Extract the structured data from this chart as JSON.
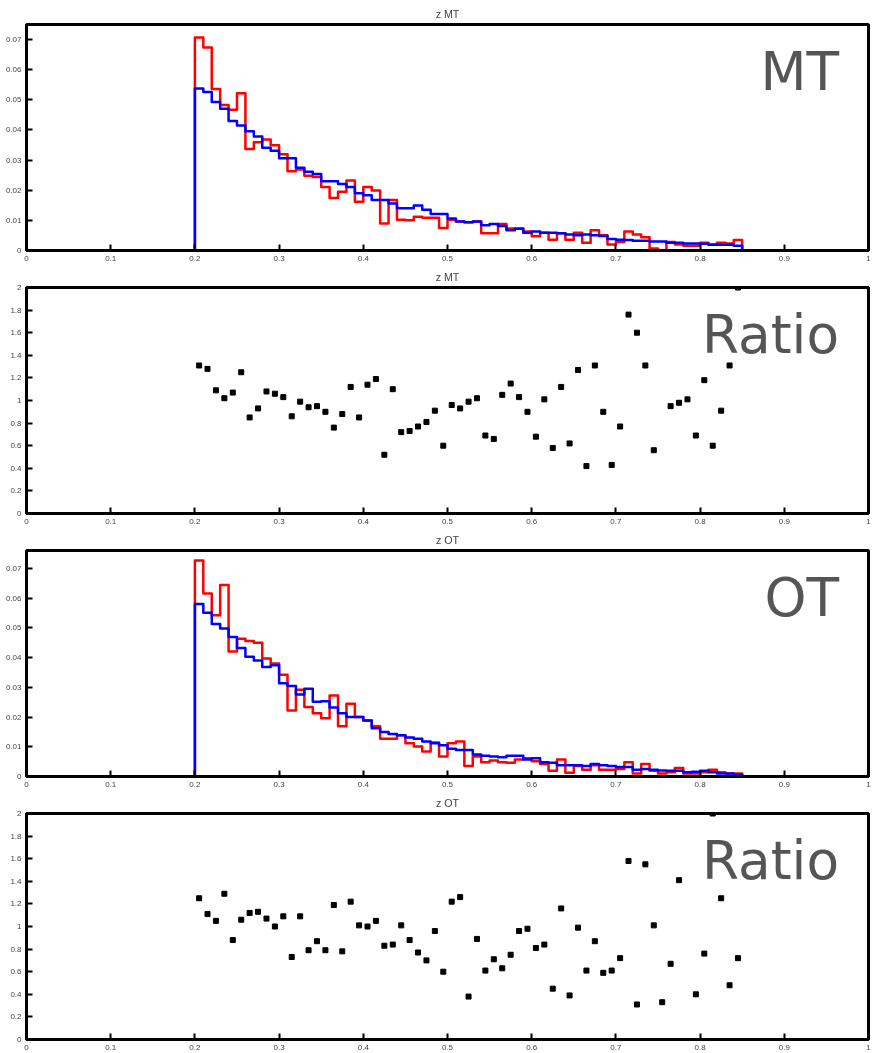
{
  "chart_data": [
    {
      "type": "histogram",
      "title": "z MT",
      "annotations": [
        "MT"
      ],
      "xlim": [
        0,
        1
      ],
      "ylim": [
        0,
        0.075
      ],
      "xticks": [
        0,
        0.1,
        0.2,
        0.3,
        0.4,
        0.5,
        0.6,
        0.7,
        0.8,
        0.9,
        1
      ],
      "yticks": [
        0,
        0.01,
        0.02,
        0.03,
        0.04,
        0.05,
        0.06,
        0.07
      ],
      "grid": false,
      "bins": [
        0,
        0.2,
        0.21,
        0.22,
        0.23,
        0.24,
        0.25,
        0.26,
        0.27,
        0.28,
        0.29,
        0.3,
        0.31,
        0.32,
        0.33,
        0.34,
        0.35,
        0.36,
        0.37,
        0.38,
        0.39,
        0.4,
        0.41,
        0.42,
        0.43,
        0.44,
        0.45,
        0.46,
        0.47,
        0.48,
        0.49,
        0.5,
        0.51,
        0.52,
        0.53,
        0.54,
        0.55,
        0.56,
        0.57,
        0.58,
        0.59,
        0.6,
        0.61,
        0.62,
        0.63,
        0.64,
        0.65,
        0.66,
        0.67,
        0.68,
        0.69,
        0.7,
        0.71,
        0.72,
        0.73,
        0.74,
        0.75,
        0.76,
        0.77,
        0.78,
        0.79,
        0.8,
        0.81,
        0.82,
        0.83,
        0.84,
        0.85,
        1
      ],
      "series": [
        {
          "color": "#ff0000",
          "values": [
            0,
            0.0707,
            0.0674,
            0.0536,
            0.0483,
            0.0467,
            0.0522,
            0.0337,
            0.0359,
            0.0368,
            0.0349,
            0.0319,
            0.0263,
            0.0269,
            0.0248,
            0.0244,
            0.0211,
            0.0174,
            0.0195,
            0.0232,
            0.0162,
            0.0211,
            0.0199,
            0.009,
            0.0168,
            0.0102,
            0.01,
            0.0112,
            0.0109,
            0.0109,
            0.0075,
            0.0102,
            0.0096,
            0.0094,
            0.0096,
            0.0057,
            0.0057,
            0.0088,
            0.0073,
            0.0073,
            0.0063,
            0.0047,
            0.0059,
            0.0036,
            0.0057,
            0.0036,
            0.0059,
            0.0026,
            0.0067,
            0.0051,
            0.002,
            0.0028,
            0.0063,
            0.0053,
            0.0044,
            0.0007,
            0,
            0.0028,
            0.002,
            0.0016,
            0.0016,
            0.0026,
            0.002,
            0.0026,
            0.0023,
            0.0035,
            0
          ]
        },
        {
          "color": "#0000ff",
          "values": [
            0,
            0.0538,
            0.0526,
            0.0493,
            0.047,
            0.043,
            0.0415,
            0.0396,
            0.0378,
            0.0341,
            0.0331,
            0.0306,
            0.0306,
            0.0275,
            0.0261,
            0.0254,
            0.023,
            0.023,
            0.0221,
            0.0211,
            0.019,
            0.0183,
            0.0168,
            0.0168,
            0.0156,
            0.014,
            0.014,
            0.0149,
            0.0135,
            0.0121,
            0.0121,
            0.0106,
            0.0096,
            0.0094,
            0.0096,
            0.0084,
            0.0088,
            0.0081,
            0.0067,
            0.0072,
            0.0059,
            0.0063,
            0.0059,
            0.0059,
            0.0057,
            0.0053,
            0.0051,
            0.0053,
            0.0051,
            0.0048,
            0.0038,
            0.0036,
            0.0035,
            0.0032,
            0.0032,
            0.003,
            0.003,
            0.0026,
            0.0026,
            0.0023,
            0.0023,
            0.0022,
            0.0019,
            0.0019,
            0.0019,
            0.0016,
            0
          ]
        }
      ]
    },
    {
      "type": "scatter",
      "title": "z MT",
      "annotations": [
        "Ratio"
      ],
      "xlim": [
        0,
        1
      ],
      "ylim": [
        0,
        2
      ],
      "marker": "square",
      "grid": false,
      "xticks": [
        0,
        0.1,
        0.2,
        0.3,
        0.4,
        0.5,
        0.6,
        0.7,
        0.8,
        0.9,
        1
      ],
      "yticks": [
        0,
        0.2,
        0.4,
        0.6,
        0.8,
        1,
        1.2,
        1.4,
        1.6,
        1.8,
        2
      ],
      "x": [
        0.205,
        0.215,
        0.225,
        0.235,
        0.245,
        0.255,
        0.265,
        0.275,
        0.285,
        0.295,
        0.305,
        0.315,
        0.325,
        0.335,
        0.345,
        0.355,
        0.365,
        0.375,
        0.385,
        0.395,
        0.405,
        0.415,
        0.425,
        0.435,
        0.445,
        0.455,
        0.465,
        0.475,
        0.485,
        0.495,
        0.505,
        0.515,
        0.525,
        0.535,
        0.545,
        0.555,
        0.565,
        0.575,
        0.585,
        0.595,
        0.605,
        0.615,
        0.625,
        0.635,
        0.645,
        0.655,
        0.665,
        0.675,
        0.685,
        0.695,
        0.705,
        0.715,
        0.725,
        0.735,
        0.745,
        0.755,
        0.765,
        0.775,
        0.785,
        0.795,
        0.805,
        0.815,
        0.825,
        0.835,
        0.845
      ],
      "series": [
        {
          "color": "#000000",
          "values": [
            1.31,
            1.28,
            1.09,
            1.02,
            1.07,
            1.25,
            0.85,
            0.93,
            1.08,
            1.06,
            1.03,
            0.86,
            0.99,
            0.94,
            0.95,
            0.9,
            0.76,
            0.88,
            1.12,
            0.85,
            1.14,
            1.19,
            0.52,
            1.1,
            0.72,
            0.73,
            0.77,
            0.81,
            0.91,
            0.6,
            0.96,
            0.93,
            0.99,
            1.02,
            0.69,
            0.66,
            1.05,
            1.15,
            1.03,
            0.9,
            0.68,
            1.01,
            0.58,
            1.12,
            0.62,
            1.27,
            0.42,
            1.31,
            0.9,
            0.43,
            0.77,
            1.76,
            1.6,
            1.31,
            0.56,
            null,
            0.95,
            0.98,
            1.01,
            0.69,
            1.18,
            0.6,
            0.91,
            1.31,
            2.0
          ]
        }
      ]
    },
    {
      "type": "histogram",
      "title": "z OT",
      "annotations": [
        "OT"
      ],
      "xlim": [
        0,
        1
      ],
      "ylim": [
        0,
        0.076
      ],
      "xticks": [
        0,
        0.1,
        0.2,
        0.3,
        0.4,
        0.5,
        0.6,
        0.7,
        0.8,
        0.9,
        1
      ],
      "yticks": [
        0,
        0.01,
        0.02,
        0.03,
        0.04,
        0.05,
        0.06,
        0.07
      ],
      "grid": false,
      "bins": [
        0,
        0.2,
        0.21,
        0.22,
        0.23,
        0.24,
        0.25,
        0.26,
        0.27,
        0.28,
        0.29,
        0.3,
        0.31,
        0.32,
        0.33,
        0.34,
        0.35,
        0.36,
        0.37,
        0.38,
        0.39,
        0.4,
        0.41,
        0.42,
        0.43,
        0.44,
        0.45,
        0.46,
        0.47,
        0.48,
        0.49,
        0.5,
        0.51,
        0.52,
        0.53,
        0.54,
        0.55,
        0.56,
        0.57,
        0.58,
        0.59,
        0.6,
        0.61,
        0.62,
        0.63,
        0.64,
        0.65,
        0.66,
        0.67,
        0.68,
        0.69,
        0.7,
        0.71,
        0.72,
        0.73,
        0.74,
        0.75,
        0.76,
        0.77,
        0.78,
        0.79,
        0.8,
        0.81,
        0.82,
        0.83,
        0.84,
        0.85,
        1
      ],
      "series": [
        {
          "color": "#ff0000",
          "values": [
            0,
            0.0726,
            0.0615,
            0.0542,
            0.0644,
            0.042,
            0.0463,
            0.0456,
            0.045,
            0.0397,
            0.038,
            0.0342,
            0.0222,
            0.0292,
            0.0234,
            0.0213,
            0.0196,
            0.0272,
            0.0169,
            0.0245,
            0.02,
            0.0188,
            0.0169,
            0.0127,
            0.0127,
            0.0139,
            0.0112,
            0.0101,
            0.0084,
            0.0114,
            0.0067,
            0.0112,
            0.0118,
            0.0035,
            0.0067,
            0.0048,
            0.0054,
            0.0048,
            0.0046,
            0.0057,
            0.0061,
            0.0051,
            0.0042,
            0.0019,
            0.0057,
            0.0013,
            0.0035,
            0.0023,
            0.0038,
            0.0023,
            0.0023,
            0.0025,
            0.0048,
            0.001,
            0.0042,
            0.0019,
            0.001,
            0.0014,
            0.0029,
            0.001,
            0.001,
            0.0014,
            0.0023,
            0.0014,
            0.001,
            0.001,
            0
          ]
        },
        {
          "color": "#0000ff",
          "values": [
            0,
            0.058,
            0.0551,
            0.0513,
            0.0498,
            0.0469,
            0.0432,
            0.0403,
            0.039,
            0.0368,
            0.0374,
            0.0314,
            0.0304,
            0.0276,
            0.0295,
            0.0251,
            0.0253,
            0.0232,
            0.0213,
            0.02,
            0.02,
            0.0188,
            0.0162,
            0.015,
            0.0143,
            0.0139,
            0.0131,
            0.0127,
            0.0118,
            0.0112,
            0.0105,
            0.0093,
            0.0089,
            0.0089,
            0.0074,
            0.007,
            0.0067,
            0.0065,
            0.007,
            0.007,
            0.0057,
            0.0061,
            0.0048,
            0.0046,
            0.0038,
            0.0038,
            0.0038,
            0.0035,
            0.0042,
            0.0038,
            0.0035,
            0.0032,
            0.0032,
            0.0023,
            0.0025,
            0.0023,
            0.002,
            0.0019,
            0.0019,
            0.0014,
            0.0016,
            0.0019,
            0.0014,
            0.001,
            0.001,
            0.0006,
            0
          ]
        }
      ]
    },
    {
      "type": "scatter",
      "title": "z OT",
      "annotations": [
        "Ratio"
      ],
      "xlim": [
        0,
        1
      ],
      "ylim": [
        0,
        2
      ],
      "marker": "square",
      "grid": false,
      "xticks": [
        0,
        0.1,
        0.2,
        0.3,
        0.4,
        0.5,
        0.6,
        0.7,
        0.8,
        0.9,
        1
      ],
      "yticks": [
        0,
        0.2,
        0.4,
        0.6,
        0.8,
        1,
        1.2,
        1.4,
        1.6,
        1.8,
        2
      ],
      "x": [
        0.205,
        0.215,
        0.225,
        0.235,
        0.245,
        0.255,
        0.265,
        0.275,
        0.285,
        0.295,
        0.305,
        0.315,
        0.325,
        0.335,
        0.345,
        0.355,
        0.365,
        0.375,
        0.385,
        0.395,
        0.405,
        0.415,
        0.425,
        0.435,
        0.445,
        0.455,
        0.465,
        0.475,
        0.485,
        0.495,
        0.505,
        0.515,
        0.525,
        0.535,
        0.545,
        0.555,
        0.565,
        0.575,
        0.585,
        0.595,
        0.605,
        0.615,
        0.625,
        0.635,
        0.645,
        0.655,
        0.665,
        0.675,
        0.685,
        0.695,
        0.705,
        0.715,
        0.725,
        0.735,
        0.745,
        0.755,
        0.765,
        0.775,
        0.785,
        0.795,
        0.805,
        0.815,
        0.825,
        0.835,
        0.845
      ],
      "series": [
        {
          "color": "#000000",
          "values": [
            1.25,
            1.11,
            1.05,
            1.29,
            0.88,
            1.06,
            1.12,
            1.13,
            1.07,
            1.0,
            1.09,
            0.73,
            1.09,
            0.79,
            0.87,
            0.79,
            1.19,
            0.78,
            1.22,
            1.01,
            1.0,
            1.05,
            0.83,
            0.84,
            1.01,
            0.88,
            0.77,
            0.7,
            0.96,
            0.6,
            1.22,
            1.26,
            0.38,
            0.89,
            0.61,
            0.71,
            0.63,
            0.75,
            0.96,
            0.98,
            0.81,
            0.84,
            0.45,
            1.16,
            0.39,
            0.99,
            0.61,
            0.87,
            0.59,
            0.61,
            0.72,
            1.58,
            0.31,
            1.55,
            1.01,
            0.33,
            0.67,
            1.41,
            null,
            0.4,
            0.76,
            2.0,
            1.25,
            0.48,
            0.72
          ]
        }
      ]
    }
  ]
}
